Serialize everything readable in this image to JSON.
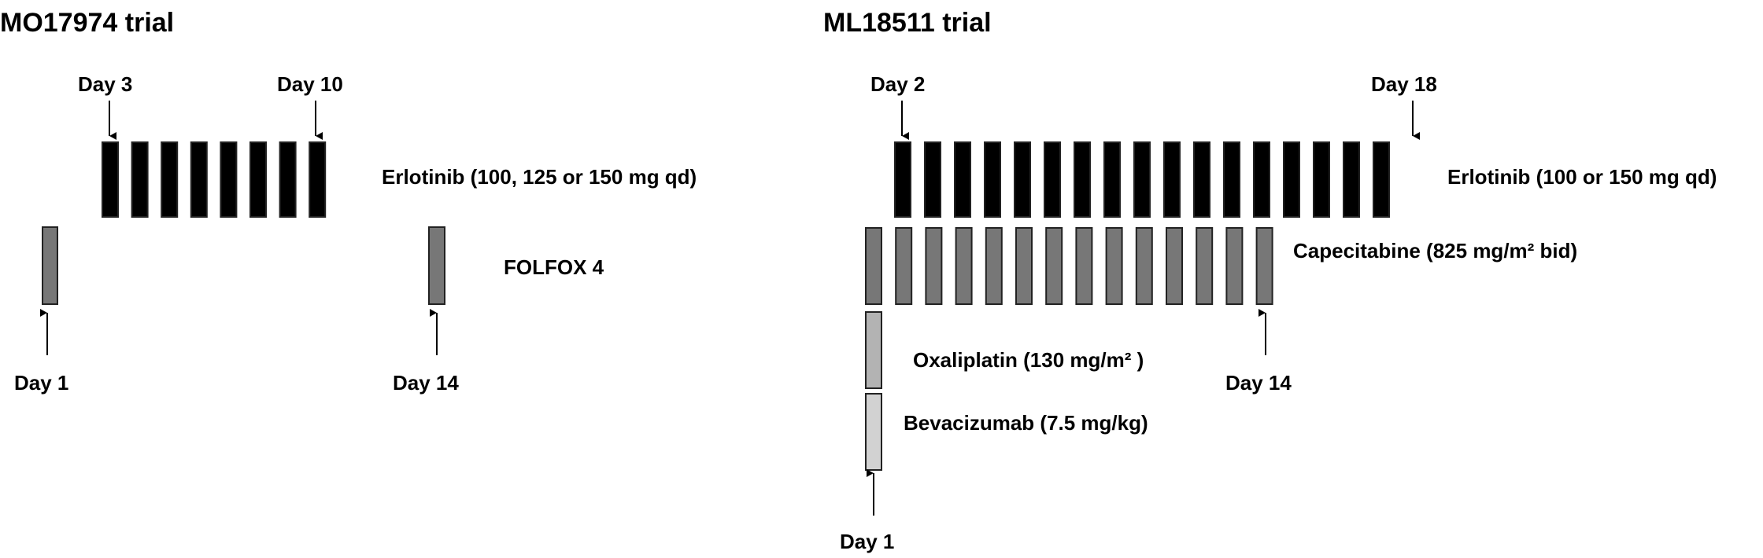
{
  "colors": {
    "erlotinib": "#000000",
    "chemo_dark": "#777777",
    "oxaliplatin": "#b3b3b3",
    "bevacizumab": "#d2d2d2",
    "outline": "#222222"
  },
  "panels": {
    "left": {
      "title": "MO17974 trial",
      "erlotinib_label": "Erlotinib  (100, 125 or 150 mg qd)",
      "erlotinib_bar_count": 8,
      "folfox_label": "FOLFOX 4",
      "day_labels": {
        "start_erlotinib": "Day 3",
        "end_erlotinib": "Day 10",
        "cycle_start": "Day 1",
        "cycle_next": "Day 14"
      }
    },
    "right": {
      "title": "ML18511 trial",
      "erlotinib_label": "Erlotinib  (100 or 150 mg qd)",
      "erlotinib_bar_count": 17,
      "capecitabine_label": "Capecitabine (825 mg/m² bid)",
      "capecitabine_bar_count": 14,
      "oxaliplatin_label": "Oxaliplatin (130 mg/m² )",
      "bevacizumab_label": "Bevacizumab (7.5 mg/kg)",
      "day_labels": {
        "start_erlotinib": "Day 2",
        "end_erlotinib": "Day 18",
        "end_capecitabine": "Day 14",
        "cycle_start": "Day 1"
      }
    }
  }
}
